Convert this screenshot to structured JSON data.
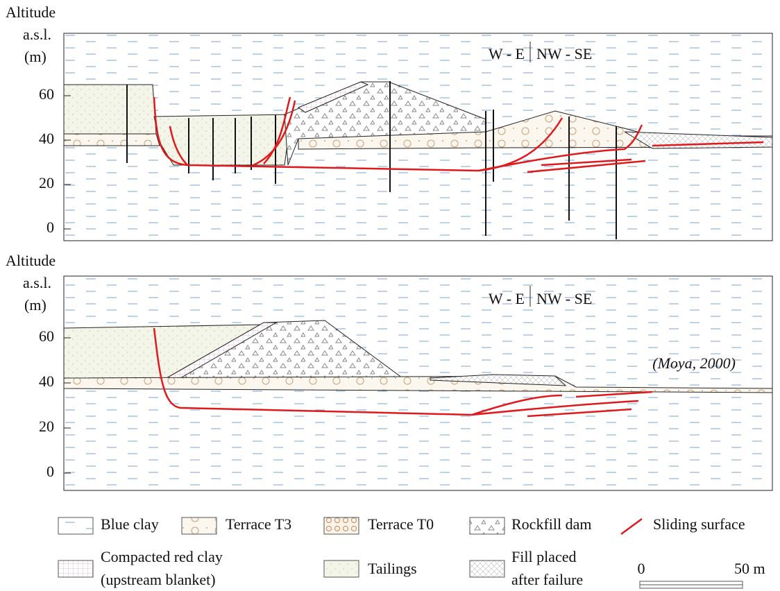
{
  "panels": [
    {
      "axis_label": [
        "Altitude",
        "a.s.l.",
        "(m)"
      ],
      "yticks": [
        0,
        20,
        40,
        60
      ],
      "orientation_left": "W - E",
      "orientation_right": "NW - SE"
    },
    {
      "axis_label": [
        "Altitude",
        "a.s.l.",
        "(m)"
      ],
      "yticks": [
        0,
        20,
        40,
        60
      ],
      "orientation_left": "W - E",
      "orientation_right": "NW - SE",
      "citation": "(Moya, 2000)"
    }
  ],
  "legend": [
    {
      "lines": [
        "Blue clay"
      ]
    },
    {
      "lines": [
        "Terrace T3"
      ]
    },
    {
      "lines": [
        "Terrace T0"
      ]
    },
    {
      "lines": [
        "Rockfill dam"
      ]
    },
    {
      "lines": [
        "Sliding surface"
      ]
    },
    {
      "lines": [
        "Compacted red clay",
        "(upstream blanket)"
      ]
    },
    {
      "lines": [
        "Tailings"
      ]
    },
    {
      "lines": [
        "Fill placed",
        "after failure"
      ]
    }
  ],
  "scale_bar": {
    "start": "0",
    "end": "50 m"
  }
}
